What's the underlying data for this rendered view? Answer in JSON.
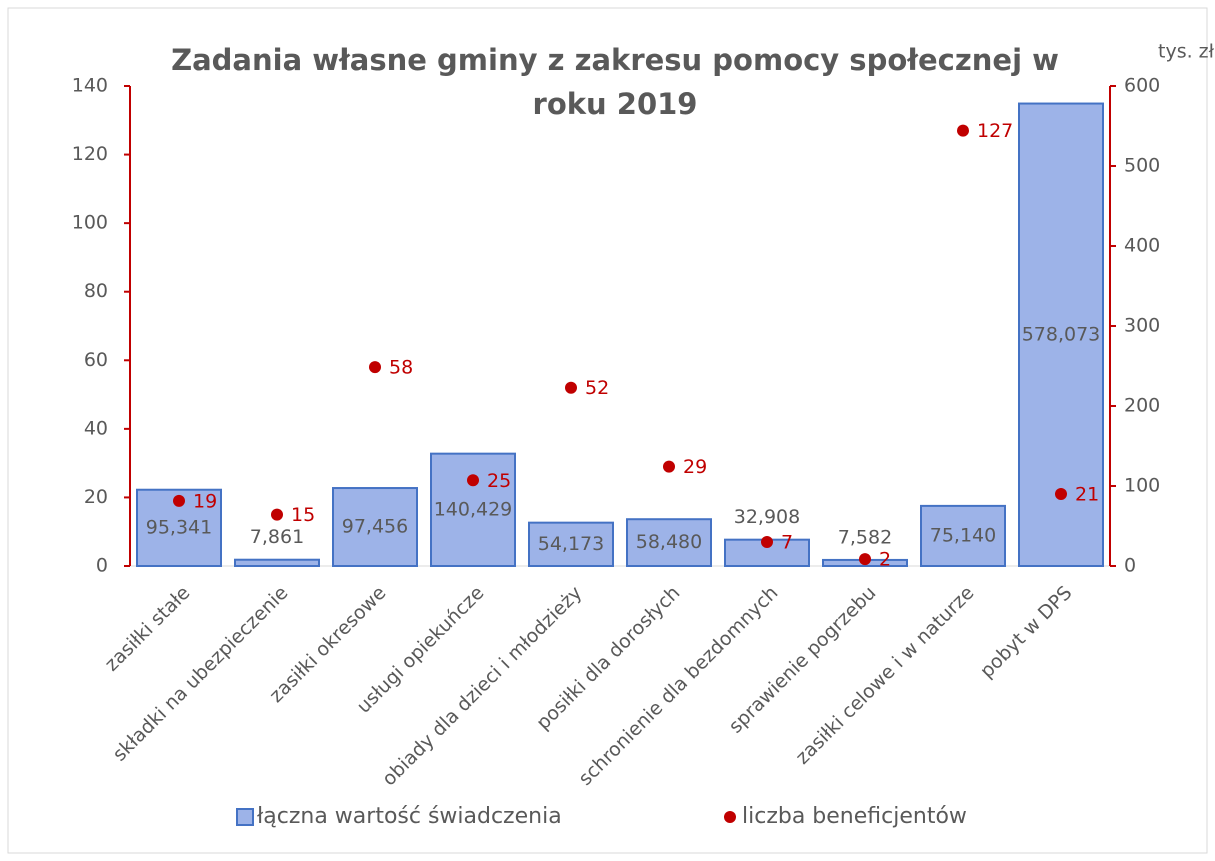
{
  "chart_data": {
    "type": "bar_scatter_combo",
    "title": "Zadania własne gminy z zakresu pomocy społecznej w roku 2019",
    "y2label": "tys. zł",
    "categories": [
      "zasiłki stałe",
      "składki na ubezpieczenie",
      "zasiłki okresowe",
      "usługi opiekuńcze",
      "obiady dla dzieci i młodzieży",
      "posiłki dla dorosłych",
      "schronienie dla bezdomnych",
      "sprawienie pogrzebu",
      "zasiłki celowe i w naturze",
      "pobyt w DPS"
    ],
    "series": [
      {
        "name": "łączna wartość świadczenia",
        "type": "bar",
        "axis": "y2",
        "color": "#9db3e8",
        "edge": "#4472c4",
        "values": [
          95.341,
          7.861,
          97.456,
          140.429,
          54.173,
          58.48,
          32.908,
          7.582,
          75.14,
          578.073
        ],
        "value_labels": [
          "95,341",
          "7,861",
          "97,456",
          "140,429",
          "54,173",
          "58,480",
          "32,908",
          "7,582",
          "75,140",
          "578,073"
        ]
      },
      {
        "name": "liczba beneficjentów",
        "type": "scatter",
        "axis": "y",
        "color": "#c00000",
        "values": [
          19,
          15,
          58,
          25,
          52,
          29,
          7,
          2,
          127,
          21
        ]
      }
    ],
    "ylim": [
      0,
      140
    ],
    "yticks": [
      0,
      20,
      40,
      60,
      80,
      100,
      120,
      140
    ],
    "y2lim": [
      0,
      600
    ],
    "y2ticks": [
      0,
      100,
      200,
      300,
      400,
      500,
      600
    ]
  }
}
